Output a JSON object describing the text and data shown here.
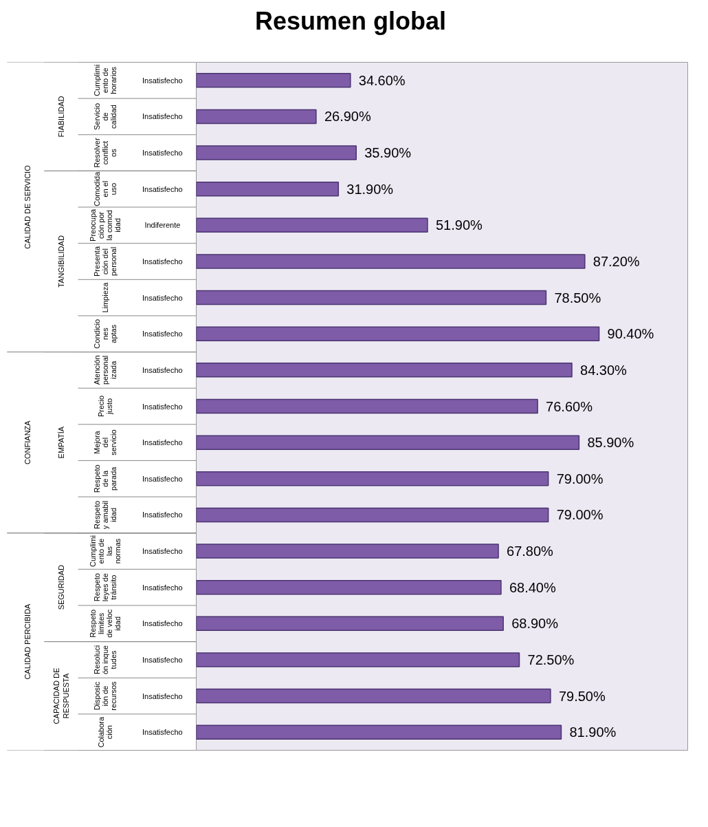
{
  "chart_data": {
    "type": "bar",
    "orientation": "horizontal",
    "title": "Resumen global",
    "categories": [
      "Cumplimiento de horarios",
      "Servicio de calidad",
      "Resolver conflictos",
      "Comodida en el uso",
      "Preocupación por la comodidad",
      "Presentación del personal",
      "Limpieza",
      "Condiciones aptas",
      "Atención personalizada",
      "Precio justo",
      "Mejora del servicio",
      "Respeto de la parada",
      "Respeto y amabilidad",
      "Cumplimiento de las normas",
      "Respeto leyes de tránsito",
      "Respeto limites de velocidad",
      "Resolución inquetudes",
      "Disposición de recursos",
      "Colaboración"
    ],
    "y2_categories": [
      "Insatisfecho",
      "Insatisfecho",
      "Insatisfecho",
      "Insatisfecho",
      "Indiferente",
      "Insatisfecho",
      "Insatisfecho",
      "Insatisfecho",
      "Insatisfecho",
      "Insatisfecho",
      "Insatisfecho",
      "Insatisfecho",
      "Insatisfecho",
      "Insatisfecho",
      "Insatisfecho",
      "Insatisfecho",
      "Insatisfecho",
      "Insatisfecho",
      "Insatisfecho"
    ],
    "values": [
      34.6,
      26.9,
      35.9,
      31.9,
      51.9,
      87.2,
      78.5,
      90.4,
      84.3,
      76.6,
      85.9,
      79.0,
      79.0,
      67.8,
      68.4,
      68.9,
      72.5,
      79.5,
      81.9
    ],
    "color": "#7e5ca8",
    "annotations": [
      "CALIDAD DE SERVICIO",
      "CONFIANZA",
      "CALIDAD PERCIBIDA",
      "FIABILIDAD",
      "TANGIBILIDAD",
      "EMPATÍA",
      "SEGURIDAD",
      "CAPACIDAD DE RESPUESTA"
    ],
    "value_labels": [
      "34.60%",
      "26.90%",
      "35.90%",
      "31.90%",
      "51.90%",
      "87.20%",
      "78.50%",
      "90.40%",
      "84.30%",
      "76.60%",
      "85.90%",
      "79.00%",
      "79.00%",
      "67.80%",
      "68.40%",
      "68.90%",
      "72.50%",
      "79.50%",
      "81.90%"
    ],
    "tick_labels": "y",
    "grid": false
  }
}
